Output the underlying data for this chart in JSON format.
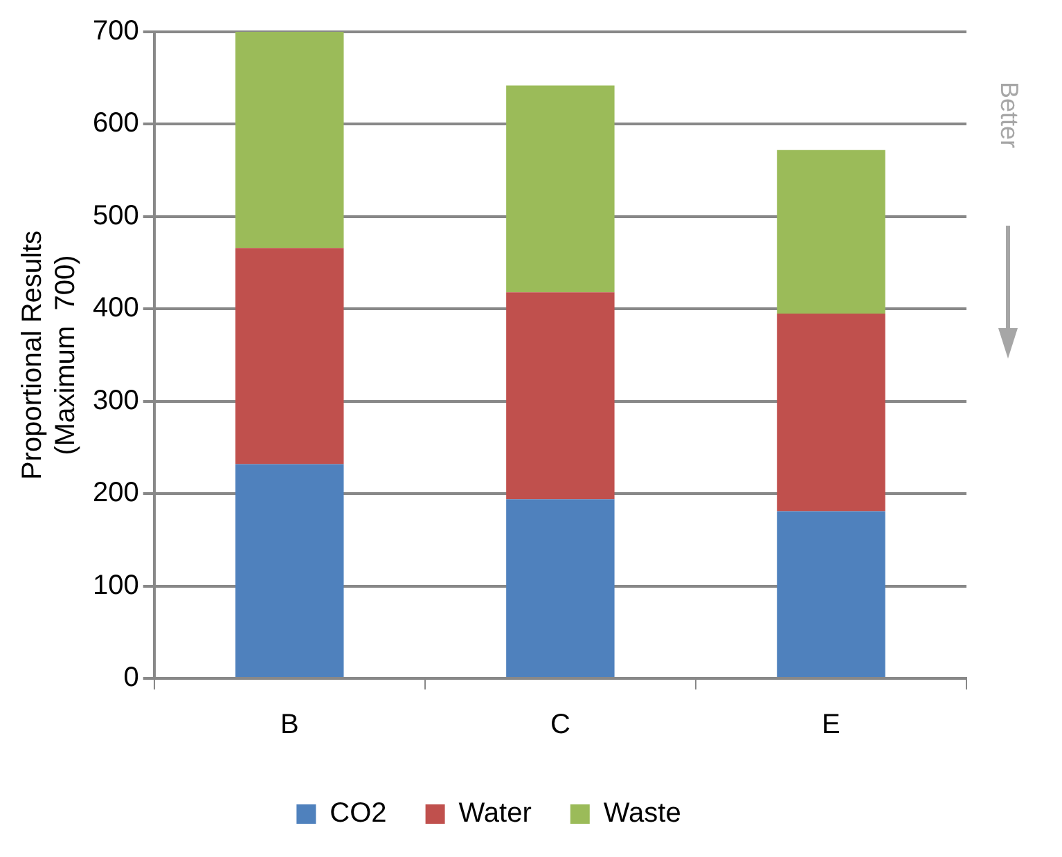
{
  "chart_data": {
    "type": "bar",
    "stacked": true,
    "categories": [
      "B",
      "C",
      "E"
    ],
    "series": [
      {
        "name": "CO2",
        "color": "#4f81bd",
        "values": [
          232,
          194,
          181
        ]
      },
      {
        "name": "Water",
        "color": "#c0504d",
        "values": [
          234,
          224,
          214
        ]
      },
      {
        "name": "Waste",
        "color": "#9bbb59",
        "values": [
          234,
          224,
          177
        ]
      }
    ],
    "ylabel": "Proportional Results\n(Maximum  700)",
    "ylim": [
      0,
      700
    ],
    "yticks": [
      0,
      100,
      200,
      300,
      400,
      500,
      600,
      700
    ],
    "grid": "y",
    "legend": "bottom",
    "annotations": [
      "Better"
    ]
  }
}
